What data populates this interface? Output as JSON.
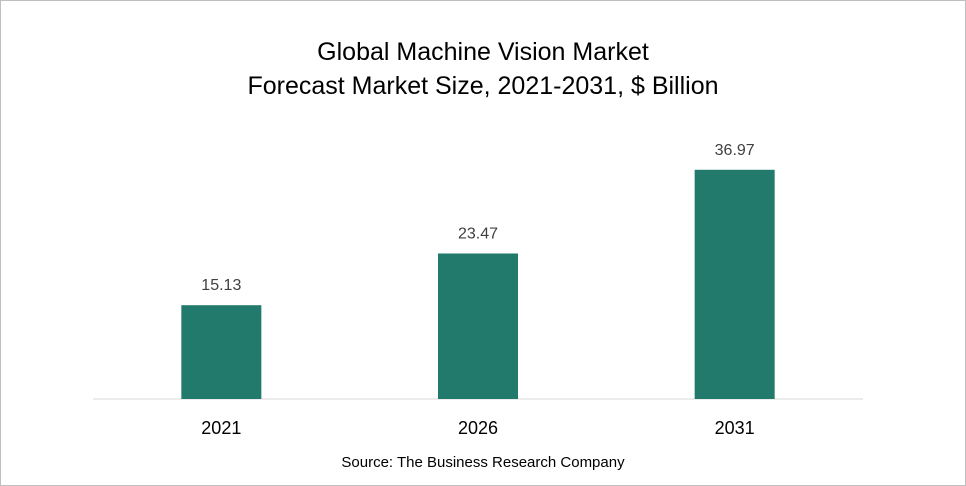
{
  "chart_data": {
    "type": "bar",
    "title": "Global Machine Vision Market",
    "subtitle": "Forecast Market Size, 2021-2031, $ Billion",
    "categories": [
      "2021",
      "2026",
      "2031"
    ],
    "values": [
      15.13,
      23.47,
      36.97
    ],
    "data_labels": [
      "15.13",
      "23.47",
      "36.97"
    ],
    "xlabel": "",
    "ylabel": "",
    "ylim": [
      0,
      40
    ],
    "grid": false,
    "legend": "none",
    "bar_color": "#217a6b"
  },
  "source": "Source: The Business Research Company"
}
